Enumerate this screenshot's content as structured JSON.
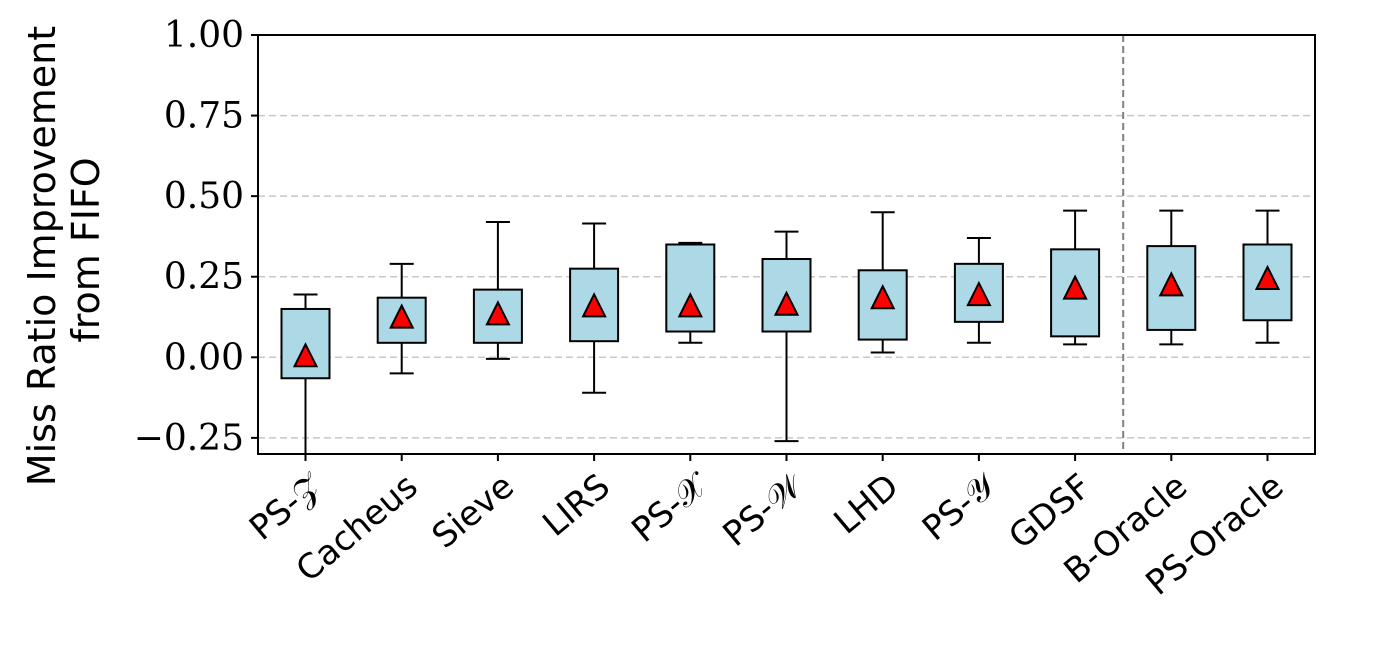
{
  "chart_data": {
    "type": "box",
    "ylabel_lines": [
      "Miss Ratio Improvement",
      "from FIFO"
    ],
    "ylim": [
      -0.3,
      1.0
    ],
    "yticks": [
      -0.25,
      0.0,
      0.25,
      0.5,
      0.75,
      1.0
    ],
    "ytick_labels": [
      "−0.25",
      "0.00",
      "0.25",
      "0.50",
      "0.75",
      "1.00"
    ],
    "grid": "horizontal-dashed",
    "separator_after_index": 8,
    "categories": [
      "PS-𝒵",
      "Cacheus",
      "Sieve",
      "LIRS",
      "PS-𝒳",
      "PS-𝒲",
      "LHD",
      "PS-𝒴",
      "GDSF",
      "B-Oracle",
      "PS-Oracle"
    ],
    "boxes": [
      {
        "whislo": -0.3,
        "q1": -0.065,
        "q3": 0.15,
        "whishi": 0.195,
        "mean": 0.0
      },
      {
        "whislo": -0.05,
        "q1": 0.045,
        "q3": 0.185,
        "whishi": 0.29,
        "mean": 0.12
      },
      {
        "whislo": -0.005,
        "q1": 0.045,
        "q3": 0.21,
        "whishi": 0.42,
        "mean": 0.13
      },
      {
        "whislo": -0.11,
        "q1": 0.05,
        "q3": 0.275,
        "whishi": 0.415,
        "mean": 0.155
      },
      {
        "whislo": 0.045,
        "q1": 0.08,
        "q3": 0.35,
        "whishi": 0.355,
        "mean": 0.155
      },
      {
        "whislo": -0.26,
        "q1": 0.08,
        "q3": 0.305,
        "whishi": 0.39,
        "mean": 0.16
      },
      {
        "whislo": 0.015,
        "q1": 0.055,
        "q3": 0.27,
        "whishi": 0.45,
        "mean": 0.18
      },
      {
        "whislo": 0.045,
        "q1": 0.11,
        "q3": 0.29,
        "whishi": 0.37,
        "mean": 0.19
      },
      {
        "whislo": 0.04,
        "q1": 0.065,
        "q3": 0.335,
        "whishi": 0.455,
        "mean": 0.21
      },
      {
        "whislo": 0.04,
        "q1": 0.085,
        "q3": 0.345,
        "whishi": 0.455,
        "mean": 0.22
      },
      {
        "whislo": 0.045,
        "q1": 0.115,
        "q3": 0.35,
        "whishi": 0.455,
        "mean": 0.24
      }
    ],
    "colors": {
      "box_fill": "#add8e6",
      "box_edge": "#000000",
      "mean_marker": "#ff0000",
      "grid": "#c8c8c8",
      "separator": "#808080"
    }
  }
}
